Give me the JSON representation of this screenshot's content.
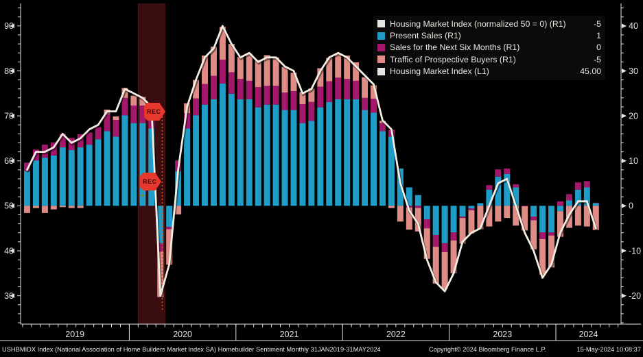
{
  "rec_badge_label": "REC",
  "legend": {
    "items": [
      {
        "label": "Housing Market Index (normalized 50 = 0) (R1)",
        "value": "-5",
        "color": "#e8e6e2"
      },
      {
        "label": "Present Sales (R1)",
        "value": "1",
        "color": "#1f9dc6"
      },
      {
        "label": "Sales for the Next Six Months (R1)",
        "value": "0",
        "color": "#a3186b"
      },
      {
        "label": "Traffic of Prospective Buyers (R1)",
        "value": "-5",
        "color": "#de8c85"
      },
      {
        "label": "Housing Market Index (L1)",
        "value": "45.00",
        "color": "#e8e6e2"
      }
    ]
  },
  "footer": {
    "left": "USHBMIDX Index (National Association of Home Builders Market Index SA) Homebuilder Sentiment  Monthly 31JAN2019-31MAY2024",
    "copyright": "Copyright© 2024 Bloomberg Finance L.P.",
    "datetime": "15-May-2024 10:08:37"
  },
  "colors": {
    "background": "#000000",
    "bar_present_sales": "#1f9dc6",
    "bar_future_sales": "#a3186b",
    "bar_traffic": "#de8c85",
    "hmi_line": "#f2ece2",
    "axis": "#e6e3de",
    "recession_band": "#3a0e11",
    "recession_edge": "#5a1315",
    "dotted_line": "#c05a1e",
    "rec_badge": "#e8372c"
  },
  "chart_data": {
    "type": "bar",
    "subtype": "stacked-bars-with-line-overlay",
    "period": "Monthly 31JAN2019-31MAY2024",
    "years": [
      "2019",
      "2020",
      "2021",
      "2022",
      "2023",
      "2024"
    ],
    "months": [
      "2019-01",
      "2019-02",
      "2019-03",
      "2019-04",
      "2019-05",
      "2019-06",
      "2019-07",
      "2019-08",
      "2019-09",
      "2019-10",
      "2019-11",
      "2019-12",
      "2020-01",
      "2020-02",
      "2020-03",
      "2020-04",
      "2020-05",
      "2020-06",
      "2020-07",
      "2020-08",
      "2020-09",
      "2020-10",
      "2020-11",
      "2020-12",
      "2021-01",
      "2021-02",
      "2021-03",
      "2021-04",
      "2021-05",
      "2021-06",
      "2021-07",
      "2021-08",
      "2021-09",
      "2021-10",
      "2021-11",
      "2021-12",
      "2022-01",
      "2022-02",
      "2022-03",
      "2022-04",
      "2022-05",
      "2022-06",
      "2022-07",
      "2022-08",
      "2022-09",
      "2022-10",
      "2022-11",
      "2022-12",
      "2023-01",
      "2023-02",
      "2023-03",
      "2023-04",
      "2023-05",
      "2023-06",
      "2023-07",
      "2023-08",
      "2023-09",
      "2023-10",
      "2023-11",
      "2023-12",
      "2024-01",
      "2024-02",
      "2024-03",
      "2024-04",
      "2024-05"
    ],
    "series": [
      {
        "name": "Present Sales (R1)",
        "color": "#1f9dc6",
        "values": [
          7.7,
          10.1,
          10.7,
          11.2,
          13.0,
          12.4,
          13.0,
          13.6,
          14.8,
          16.6,
          15.4,
          20.1,
          18.4,
          18.4,
          17.2,
          -8.3,
          -4.7,
          7.7,
          17.2,
          20.1,
          22.5,
          23.7,
          27.2,
          24.9,
          23.7,
          23.7,
          21.9,
          22.5,
          22.5,
          21.3,
          21.3,
          18.4,
          18.9,
          21.9,
          23.1,
          23.7,
          23.7,
          23.7,
          21.3,
          20.7,
          16.6,
          15.4,
          8.3,
          4.1,
          2.4,
          -3.0,
          -6.5,
          -8.3,
          -5.9,
          -2.4,
          -0.6,
          0.6,
          3.6,
          6.5,
          7.1,
          4.1,
          0.0,
          -2.4,
          -5.9,
          -5.9,
          -1.2,
          1.2,
          3.6,
          4.1,
          0.6
        ]
      },
      {
        "name": "Sales for the Next Six Months (R1)",
        "color": "#a3186b",
        "values": [
          1.9,
          2.4,
          2.9,
          2.9,
          3.0,
          2.7,
          2.9,
          2.7,
          2.7,
          3.7,
          3.7,
          3.9,
          3.9,
          3.9,
          3.4,
          -1.9,
          -0.5,
          2.4,
          3.4,
          3.8,
          4.6,
          5.2,
          5.3,
          4.8,
          4.5,
          4.1,
          4.5,
          4.2,
          4.2,
          3.9,
          4.2,
          4.2,
          4.2,
          4.6,
          4.6,
          4.8,
          4.5,
          4.1,
          2.7,
          3.1,
          1.8,
          1.5,
          0.0,
          -0.4,
          -0.5,
          -2.0,
          -2.6,
          -2.0,
          -1.8,
          -0.3,
          -0.4,
          0.0,
          1.0,
          1.6,
          1.2,
          0.7,
          -0.1,
          -0.8,
          -1.5,
          -0.7,
          1.0,
          1.4,
          1.6,
          1.4,
          0.1
        ]
      },
      {
        "name": "Traffic of Prospective Buyers (R1)",
        "color": "#de8c85",
        "values": [
          -1.6,
          -0.5,
          -1.6,
          -0.8,
          -0.3,
          -0.5,
          -0.5,
          0.0,
          0.0,
          1.1,
          0.8,
          2.2,
          2.2,
          1.9,
          1.6,
          -10.1,
          -7.9,
          -1.9,
          2.2,
          4.1,
          6.3,
          6.5,
          7.3,
          6.3,
          4.9,
          6.0,
          6.0,
          6.8,
          6.3,
          5.7,
          4.1,
          2.7,
          3.0,
          4.1,
          5.2,
          5.4,
          5.2,
          4.1,
          4.6,
          3.0,
          0.5,
          -0.5,
          -3.5,
          -4.9,
          -5.2,
          -6.8,
          -8.2,
          -8.2,
          -7.3,
          -5.7,
          -5.2,
          -5.2,
          -4.6,
          -3.5,
          -2.7,
          -4.4,
          -5.4,
          -6.5,
          -7.9,
          -7.1,
          -5.7,
          -4.9,
          -4.4,
          -4.6,
          -5.4
        ]
      }
    ],
    "line_series": {
      "name": "Housing Market Index (L1)",
      "color": "#f2ece2",
      "axis": "left",
      "values": [
        58,
        62,
        62,
        63,
        66,
        64,
        65,
        67,
        68,
        71,
        71,
        76,
        75,
        74,
        72,
        30,
        37,
        58,
        72,
        78,
        83,
        85,
        90,
        86,
        83,
        84,
        82,
        83,
        83,
        81,
        80,
        75,
        76,
        80,
        83,
        84,
        83,
        81,
        79,
        77,
        69,
        67,
        55,
        49,
        46,
        38,
        33,
        31,
        35,
        42,
        44,
        45,
        50,
        55,
        56,
        50,
        44,
        40,
        34,
        37,
        44,
        48,
        51,
        51,
        45
      ]
    },
    "left_axis": {
      "ticks": [
        90,
        80,
        70,
        60,
        50,
        40,
        30
      ]
    },
    "right_axis": {
      "ticks": [
        40,
        30,
        20,
        10,
        0,
        -10,
        -20
      ]
    },
    "axis_relation": "left = right + 50 (normalized 50 = 0)",
    "ylim_right": [
      -26.3,
      45.0
    ],
    "minor_tick_step": 2,
    "recession_band": {
      "from": "2020-02",
      "to": "2020-04",
      "from_index": 13,
      "to_index": 16
    },
    "grid": false,
    "legend_position": "top-right"
  }
}
